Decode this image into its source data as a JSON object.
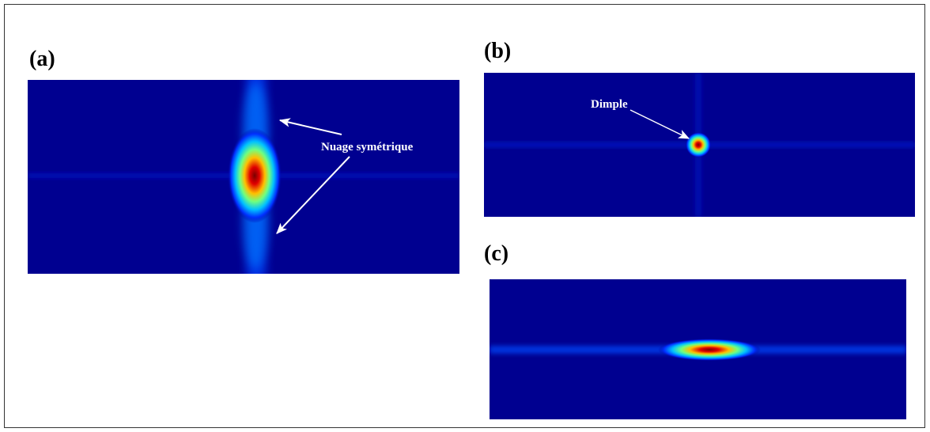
{
  "panels": [
    {
      "label": "(a)",
      "annotation": "Nuage symétrique"
    },
    {
      "label": "(b)",
      "annotation": "Dimple"
    },
    {
      "label": "(c)"
    }
  ]
}
